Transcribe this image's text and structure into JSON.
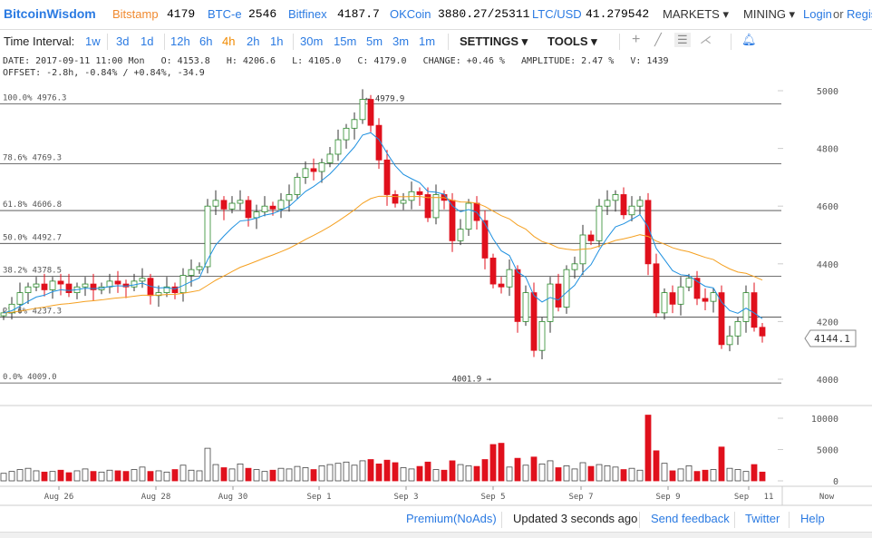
{
  "header": {
    "logo": "BitcoinWisdom",
    "tickers": [
      {
        "name": "Bitstamp",
        "value": "4179"
      },
      {
        "name": "BTC-e",
        "value": "2546"
      },
      {
        "name": "Bitfinex",
        "value": "4187.7"
      },
      {
        "name": "OKCoin",
        "value": "3880.27/25311"
      },
      {
        "name": "LTC/USD",
        "value": "41.279542"
      }
    ],
    "markets": "MARKETS ▾",
    "mining": "MINING ▾",
    "login": "Login",
    "or": "or",
    "register": "Regis"
  },
  "toolbar": {
    "label": "Time Interval:",
    "intervals": [
      "1w",
      "3d",
      "1d",
      "12h",
      "6h",
      "4h",
      "2h",
      "1h",
      "30m",
      "15m",
      "5m",
      "3m",
      "1m"
    ],
    "active": "4h",
    "settings": "SETTINGS ▾",
    "tools": "TOOLS ▾"
  },
  "info": {
    "line1": "DATE: 2017-09-11 11:00 Mon   O: 4153.8   H: 4206.6   L: 4105.0   C: 4179.0   CHANGE: +0.46 %   AMPLITUDE: 2.47 %   V: 1439",
    "line2": "OFFSET: -2.8h, -0.84% / +0.84%, -34.9"
  },
  "colors": {
    "up": "#ffffff",
    "down": "#e0101c",
    "ma_short": "#1e90e0",
    "ma_long": "#f5a020",
    "accent": "#2a7ae2",
    "active": "#f08a00"
  },
  "chart_data": {
    "type": "candlestick",
    "ylim": [
      4000,
      5000
    ],
    "y_ticks": [
      "5000",
      "4800",
      "4600",
      "4400",
      "4200",
      "4000"
    ],
    "vol_ticks": [
      "10000",
      "5000",
      "0"
    ],
    "vol_ylim": [
      0,
      10000
    ],
    "x_ticks": [
      "Aug 26",
      "Aug 28",
      "Aug 30",
      "Sep 1",
      "Sep 3",
      "Sep 5",
      "Sep 7",
      "Sep 9",
      "Sep",
      "11",
      "Now"
    ],
    "last_price": "4144.1",
    "high_marker": "← 4979.9",
    "low_marker": "4001.9 →",
    "fib": [
      {
        "label": "100.0% 4976.3",
        "v": 4976.3
      },
      {
        "label": "78.6% 4769.3",
        "v": 4769.3
      },
      {
        "label": "61.8% 4606.8",
        "v": 4606.8
      },
      {
        "label": "50.0% 4492.7",
        "v": 4492.7
      },
      {
        "label": "38.2% 4378.5",
        "v": 4378.5
      },
      {
        "label": "23.6% 4237.3",
        "v": 4237.3
      },
      {
        "label": "0.0% 4009.0",
        "v": 4009.0
      }
    ],
    "open0": 4220,
    "closes": [
      4230,
      4260,
      4300,
      4320,
      4330,
      4310,
      4340,
      4330,
      4300,
      4320,
      4330,
      4310,
      4320,
      4340,
      4330,
      4320,
      4340,
      4350,
      4290,
      4300,
      4320,
      4300,
      4360,
      4380,
      4390,
      4600,
      4620,
      4590,
      4610,
      4620,
      4560,
      4580,
      4600,
      4590,
      4620,
      4640,
      4700,
      4730,
      4720,
      4750,
      4780,
      4830,
      4870,
      4900,
      4970,
      4880,
      4760,
      4640,
      4610,
      4620,
      4650,
      4640,
      4560,
      4640,
      4620,
      4480,
      4520,
      4610,
      4550,
      4420,
      4330,
      4320,
      4380,
      4200,
      4300,
      4100,
      4200,
      4330,
      4250,
      4380,
      4400,
      4500,
      4480,
      4600,
      4620,
      4640,
      4570,
      4600,
      4620,
      4400,
      4230,
      4300,
      4260,
      4320,
      4350,
      4280,
      4270,
      4300,
      4120,
      4150,
      4200,
      4300,
      4180,
      4150
    ],
    "volumes": [
      1200,
      1500,
      1800,
      2000,
      1600,
      1400,
      1500,
      1700,
      1300,
      1600,
      1900,
      1500,
      1400,
      1700,
      1600,
      1500,
      1800,
      2200,
      1500,
      1600,
      1400,
      1800,
      2500,
      1700,
      1600,
      5200,
      2600,
      2100,
      1900,
      2700,
      2000,
      1800,
      1500,
      1700,
      2000,
      1900,
      2300,
      2100,
      1800,
      2400,
      2600,
      2800,
      3000,
      2500,
      3200,
      3400,
      2700,
      3300,
      2900,
      2100,
      1900,
      2300,
      3000,
      1800,
      1700,
      3200,
      2600,
      2400,
      2300,
      3400,
      5800,
      6000,
      2200,
      3600,
      2500,
      3800,
      2700,
      3200,
      2100,
      2400,
      1900,
      2900,
      2300,
      2600,
      2400,
      2200,
      1800,
      2000,
      1700,
      10500,
      4800,
      2800,
      1600,
      1900,
      2400,
      1500,
      1700,
      1800,
      5400,
      2000,
      1800,
      1500,
      2600,
      1400
    ]
  },
  "footer": {
    "premium": "Premium(NoAds)",
    "updated": "Updated 3 seconds ago",
    "feedback": "Send feedback",
    "twitter": "Twitter",
    "help": "Help"
  }
}
